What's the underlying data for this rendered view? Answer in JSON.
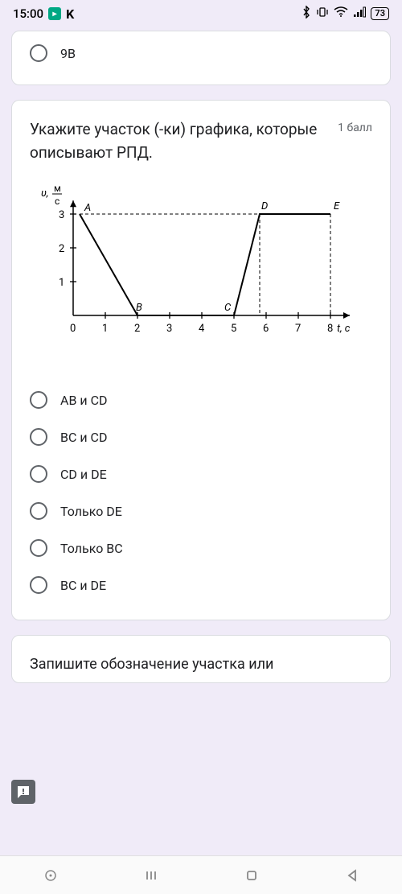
{
  "statusbar": {
    "time": "15:00",
    "app_letter": "K",
    "battery": "73"
  },
  "card_prev": {
    "option_label": "9В"
  },
  "question": {
    "title": "Укажите участок (-ки) графика, которые описывают РПД.",
    "points": "1 балл"
  },
  "chart": {
    "type": "line",
    "y_axis_label": "υ, ",
    "y_axis_unit_top": "м",
    "y_axis_unit_bot": "с",
    "x_axis_label": "t, с",
    "x_ticks": [
      0,
      1,
      2,
      3,
      4,
      5,
      6,
      7,
      8
    ],
    "y_ticks": [
      1,
      2,
      3
    ],
    "points": {
      "A": {
        "x": 0.2,
        "y": 3,
        "label": "A"
      },
      "B": {
        "x": 2,
        "y": 0,
        "label": "B"
      },
      "C": {
        "x": 5,
        "y": 0,
        "label": "C"
      },
      "D": {
        "x": 5.8,
        "y": 3,
        "label": "D"
      },
      "E": {
        "x": 8,
        "y": 3,
        "label": "E"
      }
    },
    "axis_color": "#000000",
    "line_color": "#000000",
    "dash_color": "#000000",
    "line_width": 2,
    "font_size": 13
  },
  "options": [
    "AB и CD",
    "BC и CD",
    "CD и DE",
    "Только DE",
    "Только BC",
    "BC и DE"
  ],
  "next_card": {
    "title": "Запишите обозначение участка или"
  }
}
